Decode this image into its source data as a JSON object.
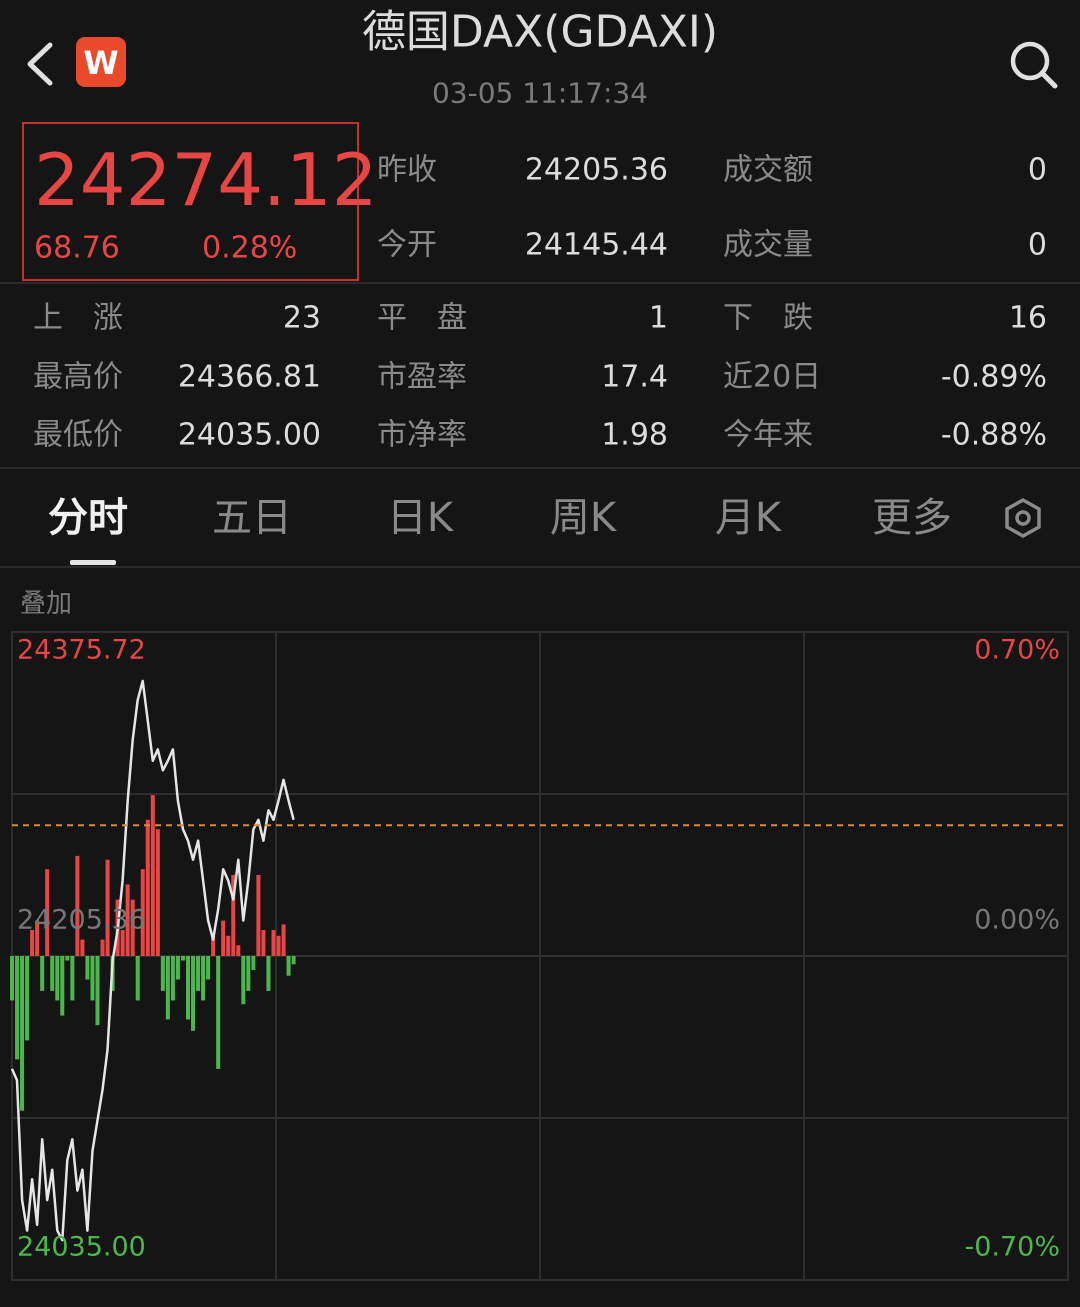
{
  "header": {
    "title": "德国DAX(GDAXI)",
    "time": "03-05 11:17:34",
    "app_icon": "W"
  },
  "quote": {
    "price": 24274.12,
    "change": "68.76",
    "change_pct": "0.28%"
  },
  "stats": [
    [
      {
        "label": "昨收",
        "value": "24205.36"
      },
      {
        "label": "成交额",
        "value": "0"
      }
    ],
    [
      {
        "label": "今开",
        "value": "24145.44"
      },
      {
        "label": "成交量",
        "value": "0"
      }
    ],
    [
      {
        "label": "上　涨",
        "value": "23"
      },
      {
        "label": "平　盘",
        "value": "1"
      },
      {
        "label": "下　跌",
        "value": "16"
      }
    ],
    [
      {
        "label": "最高价",
        "value": "24366.81"
      },
      {
        "label": "市盈率",
        "value": "17.4"
      },
      {
        "label": "近20日",
        "value": "-0.89%"
      }
    ],
    [
      {
        "label": "最低价",
        "value": "24035.00"
      },
      {
        "label": "市净率",
        "value": "1.98"
      },
      {
        "label": "今年来",
        "value": "-0.88%"
      }
    ]
  ],
  "tabs": [
    "分时",
    "五日",
    "日K",
    "周K",
    "月K",
    "更多"
  ],
  "overlay_label": "叠加",
  "chart_data": {
    "type": "line",
    "price_line": {
      "color": "#e6e6e6",
      "values": [
        24146,
        24140,
        24077,
        24061,
        24088,
        24064,
        24109,
        24077,
        24093,
        24061,
        24056,
        24098,
        24109,
        24082,
        24093,
        24061,
        24103,
        24119,
        24135,
        24156,
        24203,
        24219,
        24245,
        24287,
        24319,
        24340,
        24350,
        24329,
        24308,
        24314,
        24303,
        24308,
        24314,
        24287,
        24272,
        24266,
        24256,
        24266,
        24245,
        24224,
        24214,
        24230,
        24251,
        24245,
        24235,
        24256,
        24224,
        24245,
        24272,
        24277,
        24266,
        24282,
        24277,
        24287,
        24298,
        24287,
        24277
      ]
    },
    "bars": {
      "up_color": "#e84545",
      "down_color": "#4cb74c",
      "values": [
        24182,
        24151,
        24124,
        24161,
        24219,
        24224,
        24187,
        24251,
        24187,
        24182,
        24174,
        24203,
        24182,
        24258,
        24214,
        24193,
        24182,
        24169,
        24214,
        24256,
        24187,
        24235,
        24219,
        24243,
        24235,
        24182,
        24251,
        24277,
        24290,
        24272,
        24187,
        24172,
        24182,
        24193,
        24203,
        24172,
        24166,
        24187,
        24182,
        24193,
        24216,
        24146,
        24224,
        24216,
        24248,
        24211,
        24180,
        24187,
        24198,
        24248,
        24219,
        24187,
        24219,
        24216,
        24222,
        24195,
        24201
      ]
    },
    "ylim": [
      24035,
      24375.72
    ],
    "yticks": [
      {
        "value": 24035,
        "label": "24035.00"
      },
      24205.36,
      24375.72
    ],
    "y2lim": [
      -0.7,
      0.7
    ],
    "y2ticks": [
      {
        "value": -0.7,
        "label": "-0.70%"
      },
      {
        "value": 0,
        "label": "0.00%"
      },
      {
        "value": 0.7,
        "label": "0.70%"
      }
    ],
    "xlim": [
      0,
      210
    ],
    "grid": true,
    "reference_color": "#e08a2e"
  }
}
